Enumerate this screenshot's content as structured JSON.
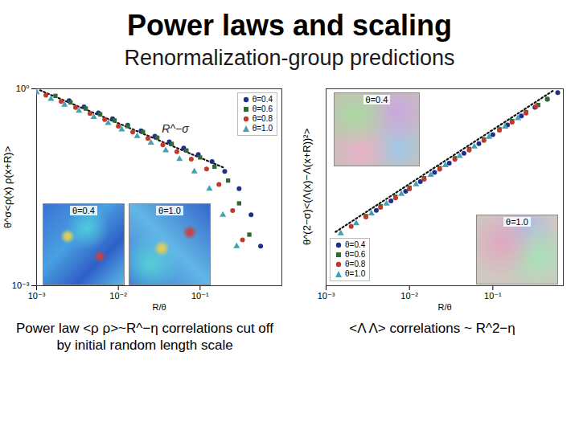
{
  "title": "Power laws and scaling",
  "subtitle": "Renormalization-group predictions",
  "chart_data": [
    {
      "type": "scatter",
      "x_label": "R/θ",
      "y_label": "θ^σ<ρ(x) ρ(x+R)>",
      "caption": "Power law <ρ ρ>~R^−η correlations cut off by initial random length scale",
      "annotations": [
        "R^−σ"
      ],
      "insets": [
        "θ=0.4",
        "θ=1.0"
      ],
      "log": true,
      "legend": "upper right",
      "xlim": [
        0.001,
        1
      ],
      "ylim": [
        0.001,
        1
      ],
      "xticks": [
        {
          "value": 0.001,
          "label": "10⁻³"
        },
        {
          "value": 0.01,
          "label": "10⁻²"
        },
        {
          "value": 0.1,
          "label": "10⁻¹"
        }
      ],
      "yticks": [
        {
          "value": 0.001,
          "label": "10⁻³"
        },
        {
          "value": 1,
          "label": "10⁰"
        }
      ],
      "series": [
        {
          "type": "line",
          "line_style": "dotted",
          "color": "#111111",
          "x": [
            0.0011,
            0.2
          ],
          "values": [
            0.95,
            0.062
          ]
        },
        {
          "name": "θ=0.4",
          "color": "#1f2f8a",
          "marker": "circle",
          "x": [
            0.0025,
            0.0038,
            0.0057,
            0.0085,
            0.013,
            0.019,
            0.028,
            0.042,
            0.063,
            0.095,
            0.14,
            0.2,
            0.3,
            0.42,
            0.55
          ],
          "values": [
            0.66,
            0.53,
            0.43,
            0.35,
            0.28,
            0.23,
            0.19,
            0.155,
            0.125,
            0.1,
            0.078,
            0.055,
            0.03,
            0.012,
            0.004
          ]
        },
        {
          "name": "θ=0.6",
          "color": "#2e6b2e",
          "marker": "square",
          "x": [
            0.0017,
            0.0026,
            0.004,
            0.006,
            0.009,
            0.013,
            0.02,
            0.03,
            0.045,
            0.068,
            0.1,
            0.15,
            0.22,
            0.3,
            0.4
          ],
          "values": [
            0.78,
            0.62,
            0.5,
            0.41,
            0.33,
            0.27,
            0.22,
            0.18,
            0.145,
            0.115,
            0.09,
            0.065,
            0.04,
            0.018,
            0.006
          ]
        },
        {
          "name": "θ=0.8",
          "color": "#c0392b",
          "marker": "circle",
          "x": [
            0.0013,
            0.002,
            0.003,
            0.0045,
            0.0068,
            0.01,
            0.015,
            0.023,
            0.035,
            0.052,
            0.078,
            0.12,
            0.17,
            0.25,
            0.33
          ],
          "values": [
            0.8,
            0.64,
            0.52,
            0.42,
            0.34,
            0.27,
            0.22,
            0.175,
            0.14,
            0.11,
            0.085,
            0.06,
            0.035,
            0.014,
            0.005
          ]
        },
        {
          "name": "θ=1.0",
          "color": "#45a0b5",
          "marker": "triangle",
          "x": [
            0.001,
            0.0015,
            0.0022,
            0.0033,
            0.005,
            0.0075,
            0.011,
            0.017,
            0.025,
            0.038,
            0.056,
            0.085,
            0.13,
            0.19,
            0.28
          ],
          "values": [
            0.88,
            0.7,
            0.57,
            0.46,
            0.37,
            0.3,
            0.24,
            0.19,
            0.15,
            0.115,
            0.085,
            0.055,
            0.03,
            0.012,
            0.004
          ]
        }
      ]
    },
    {
      "type": "scatter",
      "x_label": "R/θ",
      "y_label": "θ^(2−σ)<(Λ(x)−Λ(x+R))²>",
      "caption": "<Λ Λ> correlations ~ R^2−η",
      "insets": [
        "θ=0.4",
        "θ=1.0"
      ],
      "log": true,
      "legend": "lower left",
      "tick_labels": "x",
      "xlim": [
        0.001,
        0.7
      ],
      "ylim": [
        0.0001,
        1
      ],
      "xticks": [
        {
          "value": 0.001,
          "label": "10⁻³"
        },
        {
          "value": 0.01,
          "label": "10⁻²"
        },
        {
          "value": 0.1,
          "label": "10⁻¹"
        }
      ],
      "series": [
        {
          "type": "line",
          "line_style": "dotted",
          "color": "#111111",
          "x": [
            0.0013,
            0.55
          ],
          "values": [
            0.00124,
            0.96
          ]
        },
        {
          "name": "θ=0.4",
          "color": "#1f2f8a",
          "marker": "circle",
          "x": [
            0.004,
            0.006,
            0.009,
            0.0135,
            0.02,
            0.03,
            0.045,
            0.068,
            0.1,
            0.15,
            0.22,
            0.32,
            0.45,
            0.6
          ],
          "values": [
            0.0034,
            0.0053,
            0.0083,
            0.013,
            0.02,
            0.031,
            0.049,
            0.077,
            0.117,
            0.184,
            0.28,
            0.42,
            0.615,
            0.84
          ]
        },
        {
          "name": "θ=0.6",
          "color": "#2e6b2e",
          "marker": "square",
          "x": [
            0.003,
            0.0045,
            0.0068,
            0.01,
            0.015,
            0.023,
            0.035,
            0.052,
            0.078,
            0.12,
            0.17,
            0.25,
            0.35,
            0.45
          ],
          "values": [
            0.0026,
            0.0041,
            0.0064,
            0.0098,
            0.0153,
            0.0245,
            0.039,
            0.06,
            0.094,
            0.151,
            0.222,
            0.336,
            0.47,
            0.62
          ]
        },
        {
          "name": "θ=0.8",
          "color": "#c0392b",
          "marker": "circle",
          "x": [
            0.002,
            0.003,
            0.0045,
            0.0068,
            0.01,
            0.015,
            0.023,
            0.035,
            0.052,
            0.078,
            0.12,
            0.17,
            0.25,
            0.33
          ],
          "values": [
            0.0016,
            0.0025,
            0.0039,
            0.0061,
            0.0093,
            0.0146,
            0.0233,
            0.037,
            0.057,
            0.0895,
            0.144,
            0.211,
            0.32,
            0.44
          ]
        },
        {
          "name": "θ=1.0",
          "color": "#45a0b5",
          "marker": "triangle",
          "x": [
            0.0015,
            0.0023,
            0.0035,
            0.0053,
            0.008,
            0.012,
            0.018,
            0.027,
            0.04,
            0.06,
            0.09,
            0.14,
            0.2
          ],
          "values": [
            0.00116,
            0.00185,
            0.00294,
            0.00465,
            0.0073,
            0.0114,
            0.0178,
            0.0279,
            0.043,
            0.067,
            0.105,
            0.17,
            0.252
          ]
        }
      ]
    }
  ]
}
